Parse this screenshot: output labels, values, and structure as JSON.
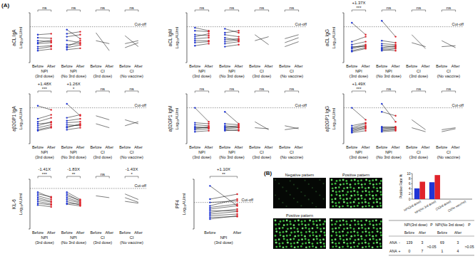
{
  "panel_labels": [
    "(A)",
    "(B)"
  ],
  "chart_data": [
    {
      "type": "line",
      "title": "aCL IgA",
      "y_label": "Log₁₀AU/ml",
      "ylim": [
        -0.5,
        2
      ],
      "tick_labels": false,
      "cutoff": {
        "value": 1.3,
        "label": "Cut-off"
      },
      "categories": [
        "Before",
        "After"
      ],
      "series": [
        {
          "name": "NPI (3rd dose)",
          "marker": "circle",
          "colors": [
            "#1f35d6",
            "#e0232b"
          ],
          "significance": "ns",
          "lines": [
            [
              0.45,
              0.5
            ],
            [
              0.3,
              0.35
            ],
            [
              0.6,
              0.55
            ],
            [
              0.2,
              0.3
            ],
            [
              0.75,
              0.72
            ],
            [
              0.5,
              0.62
            ],
            [
              0.9,
              0.95
            ],
            [
              0.1,
              0.18
            ]
          ]
        },
        {
          "name": "NPI (No 3rd dose)",
          "marker": "circle",
          "colors": [
            "#1f35d6",
            "#e0232b"
          ],
          "significance": "ns",
          "lines": [
            [
              0.4,
              0.45
            ],
            [
              0.62,
              0.5
            ],
            [
              0.25,
              0.38
            ],
            [
              1.15,
              0.7
            ],
            [
              0.8,
              0.9
            ],
            [
              0.3,
              0.6
            ],
            [
              0.95,
              1.05
            ],
            [
              0.15,
              0.22
            ]
          ]
        },
        {
          "name": "CI (3rd dose)",
          "significance": "ns",
          "lines": [
            [
              1.0,
              0.1
            ],
            [
              0.6,
              0.45
            ]
          ]
        },
        {
          "name": "CI (No vaccine)",
          "significance": "ns",
          "lines": [
            [
              0.85,
              0.3
            ],
            [
              0.45,
              0.6
            ],
            [
              0.25,
              0.5
            ]
          ]
        }
      ]
    },
    {
      "type": "line",
      "title": "aCL IgM",
      "y_label": "Log₁₀AU/ml",
      "ylim": [
        -0.5,
        2
      ],
      "tick_labels": false,
      "cutoff": {
        "value": 1.3,
        "label": "Cut-off"
      },
      "categories": [
        "Before",
        "After"
      ],
      "series": [
        {
          "name": "NPI (3rd dose)",
          "marker": "circle",
          "colors": [
            "#1f35d6",
            "#e0232b"
          ],
          "significance": "ns",
          "lines": [
            [
              0.7,
              0.75
            ],
            [
              0.5,
              0.55
            ],
            [
              0.9,
              0.85
            ],
            [
              1.1,
              1.05
            ],
            [
              0.35,
              0.45
            ],
            [
              0.8,
              0.95
            ],
            [
              0.6,
              0.6
            ],
            [
              1.25,
              1.1
            ]
          ]
        },
        {
          "name": "NPI (No 3rd dose)",
          "marker": "circle",
          "colors": [
            "#1f35d6",
            "#e0232b"
          ],
          "significance": "ns",
          "lines": [
            [
              0.65,
              0.7
            ],
            [
              0.9,
              0.8
            ],
            [
              0.45,
              0.55
            ],
            [
              1.0,
              1.1
            ],
            [
              0.3,
              0.4
            ],
            [
              0.75,
              0.6
            ],
            [
              1.2,
              1.0
            ],
            [
              0.55,
              0.65
            ]
          ]
        },
        {
          "name": "CI (3rd dose)",
          "significance": "ns",
          "lines": [
            [
              0.9,
              0.4
            ],
            [
              0.6,
              0.8
            ]
          ]
        },
        {
          "name": "CI (No vaccine)",
          "significance": "ns",
          "lines": [
            [
              0.5,
              0.75
            ],
            [
              0.3,
              0.55
            ],
            [
              0.7,
              0.9
            ]
          ]
        }
      ]
    },
    {
      "type": "line",
      "title": "aCL IgG",
      "y_label": "Log₁₀AU/ml",
      "ylim": [
        -0.5,
        2
      ],
      "tick_labels": false,
      "cutoff": {
        "value": 1.3,
        "label": "Cut-off"
      },
      "categories": [
        "Before",
        "After"
      ],
      "series": [
        {
          "name": "NPI (3rd dose)",
          "marker": "circle",
          "colors": [
            "#1f35d6",
            "#e0232b"
          ],
          "significance": "***",
          "fold_change": "+1.37X",
          "lines": [
            [
              0.2,
              0.35
            ],
            [
              0.1,
              0.25
            ],
            [
              0.4,
              0.55
            ],
            [
              0.3,
              0.3
            ],
            [
              0.55,
              0.8
            ],
            [
              0.05,
              0.2
            ],
            [
              1.5,
              0.9
            ],
            [
              0.25,
              0.4
            ]
          ]
        },
        {
          "name": "NPI (No 3rd dose)",
          "marker": "circle",
          "colors": [
            "#1f35d6",
            "#e0232b"
          ],
          "significance": "ns",
          "lines": [
            [
              0.2,
              0.25
            ],
            [
              0.35,
              0.3
            ],
            [
              1.6,
              0.8
            ],
            [
              0.1,
              0.2
            ],
            [
              0.45,
              0.4
            ],
            [
              0.25,
              0.35
            ],
            [
              0.6,
              0.5
            ],
            [
              0.15,
              0.1
            ]
          ]
        },
        {
          "name": "CI (3rd dose)",
          "significance": "ns",
          "lines": [
            [
              0.9,
              0.2
            ],
            [
              0.5,
              0.3
            ]
          ]
        },
        {
          "name": "CI (No vaccine)",
          "significance": "ns",
          "lines": [
            [
              0.6,
              0.25
            ],
            [
              0.3,
              0.35
            ]
          ]
        }
      ]
    },
    {
      "type": "line",
      "title": "aβ2GP1 IgA",
      "y_label": "Log₁₀AU/ml",
      "ylim": [
        -0.5,
        2
      ],
      "tick_labels": false,
      "cutoff": {
        "value": 1.3,
        "label": "Cut-off"
      },
      "categories": [
        "Before",
        "After"
      ],
      "series": [
        {
          "name": "NPI (3rd dose)",
          "marker": "circle",
          "colors": [
            "#1f35d6",
            "#e0232b"
          ],
          "significance": "***",
          "fold_change": "+1.48X",
          "lines": [
            [
              0.4,
              0.6
            ],
            [
              0.3,
              0.45
            ],
            [
              0.6,
              0.8
            ],
            [
              0.2,
              0.35
            ],
            [
              0.75,
              0.95
            ],
            [
              0.5,
              0.55
            ],
            [
              1.4,
              1.2
            ],
            [
              0.15,
              0.3
            ]
          ]
        },
        {
          "name": "NPI (No 3rd dose)",
          "marker": "circle",
          "colors": [
            "#1f35d6",
            "#e0232b"
          ],
          "significance": "*",
          "fold_change": "+1.26X",
          "lines": [
            [
              0.35,
              0.45
            ],
            [
              0.55,
              0.6
            ],
            [
              0.2,
              0.3
            ],
            [
              0.8,
              0.95
            ],
            [
              0.45,
              0.4
            ],
            [
              1.5,
              0.9
            ],
            [
              0.3,
              0.5
            ],
            [
              0.65,
              0.75
            ]
          ]
        },
        {
          "name": "CI (3rd dose)",
          "significance": "ns",
          "lines": [
            [
              0.9,
              0.7
            ],
            [
              0.5,
              0.3
            ]
          ]
        },
        {
          "name": "CI (No vaccine)",
          "significance": "ns",
          "lines": [
            [
              0.7,
              0.5
            ],
            [
              0.4,
              0.6
            ]
          ]
        }
      ]
    },
    {
      "type": "line",
      "title": "aβ2GP1 IgM",
      "y_label": "Log₁₀AU/ml",
      "ylim": [
        -0.5,
        2
      ],
      "tick_labels": false,
      "cutoff": {
        "value": 1.3,
        "label": "Cut-off"
      },
      "categories": [
        "Before",
        "After"
      ],
      "series": [
        {
          "name": "NPI (3rd dose)",
          "marker": "circle",
          "colors": [
            "#1f35d6",
            "#e0232b"
          ],
          "significance": "ns",
          "lines": [
            [
              0.3,
              0.3
            ],
            [
              0.2,
              0.25
            ],
            [
              0.45,
              0.4
            ],
            [
              0.1,
              0.15
            ],
            [
              1.3,
              0.6
            ],
            [
              0.35,
              0.3
            ],
            [
              0.25,
              0.35
            ],
            [
              0.55,
              0.5
            ]
          ]
        },
        {
          "name": "NPI (No 3rd dose)",
          "marker": "circle",
          "colors": [
            "#1f35d6",
            "#e0232b"
          ],
          "significance": "ns",
          "lines": [
            [
              0.25,
              0.3
            ],
            [
              0.4,
              0.35
            ],
            [
              0.15,
              0.2
            ],
            [
              1.1,
              0.5
            ],
            [
              0.3,
              0.4
            ],
            [
              0.5,
              0.45
            ],
            [
              0.2,
              0.15
            ],
            [
              0.35,
              0.3
            ]
          ]
        },
        {
          "name": "CI (3rd dose)",
          "significance": "ns",
          "lines": [
            [
              0.6,
              0.2
            ],
            [
              0.3,
              0.25
            ]
          ]
        },
        {
          "name": "CI (No vaccine)",
          "significance": "ns",
          "lines": [
            [
              0.2,
              0.3
            ],
            [
              0.4,
              0.25
            ]
          ]
        }
      ]
    },
    {
      "type": "line",
      "title": "aβ2GP1 IgG",
      "y_label": "Log₁₀AU/ml",
      "ylim": [
        -0.5,
        2
      ],
      "tick_labels": false,
      "cutoff": {
        "value": 1.3,
        "label": "Cut-off"
      },
      "categories": [
        "Before",
        "After"
      ],
      "series": [
        {
          "name": "NPI (3rd dose)",
          "marker": "circle",
          "colors": [
            "#1f35d6",
            "#e0232b"
          ],
          "significance": "***",
          "fold_change": "+1.49X",
          "lines": [
            [
              0.1,
              0.25
            ],
            [
              0.2,
              0.35
            ],
            [
              0.05,
              0.15
            ],
            [
              0.3,
              0.5
            ],
            [
              0.15,
              0.3
            ],
            [
              1.3,
              0.7
            ],
            [
              0.25,
              0.4
            ],
            [
              0.4,
              0.55
            ]
          ]
        },
        {
          "name": "NPI (No 3rd dose)",
          "marker": "circle",
          "colors": [
            "#1f35d6",
            "#e0232b"
          ],
          "significance": "ns",
          "lines": [
            [
              0.15,
              0.2
            ],
            [
              0.25,
              0.3
            ],
            [
              1.5,
              0.6
            ],
            [
              0.1,
              0.15
            ],
            [
              0.35,
              0.3
            ],
            [
              0.2,
              0.25
            ],
            [
              1.1,
              0.9
            ],
            [
              0.3,
              0.35
            ]
          ]
        },
        {
          "name": "CI (3rd dose)",
          "significance": "ns",
          "lines": [
            [
              0.7,
              0.2
            ],
            [
              0.3,
              0.1
            ]
          ]
        },
        {
          "name": "CI (No vaccine)",
          "significance": "ns",
          "lines": [
            [
              0.2,
              0.3
            ],
            [
              0.1,
              0.25
            ]
          ]
        }
      ]
    },
    {
      "type": "line",
      "title": "KL-6",
      "y_label": "Log₁₀AU/ml",
      "ylim": [
        0.5,
        3.2
      ],
      "tick_labels": false,
      "cutoff": {
        "value": 2.7,
        "label": "Cut-off"
      },
      "categories": [
        "Before",
        "After"
      ],
      "series": [
        {
          "name": "NPI (3rd dose)",
          "marker": "circle",
          "colors": [
            "#1f35d6",
            "#e0232b"
          ],
          "significance": "***",
          "fold_change": "-1.41X",
          "lines": [
            [
              2.3,
              2.1
            ],
            [
              2.1,
              1.95
            ],
            [
              2.5,
              2.2
            ],
            [
              1.9,
              1.8
            ],
            [
              2.2,
              2.0
            ],
            [
              2.0,
              1.85
            ],
            [
              2.4,
              2.25
            ],
            [
              1.8,
              1.7
            ]
          ]
        },
        {
          "name": "NPI (No 3rd dose)",
          "marker": "circle",
          "colors": [
            "#1f35d6",
            "#e0232b"
          ],
          "significance": "**",
          "fold_change": "-1.83X",
          "lines": [
            [
              2.2,
              1.95
            ],
            [
              2.4,
              2.0
            ],
            [
              2.0,
              1.8
            ],
            [
              1.9,
              1.85
            ],
            [
              2.3,
              2.05
            ],
            [
              2.1,
              1.9
            ],
            [
              2.5,
              2.1
            ],
            [
              1.85,
              1.75
            ]
          ]
        },
        {
          "name": "CI (3rd dose)",
          "significance": "ns",
          "lines": [
            [
              2.3,
              2.2
            ]
          ]
        },
        {
          "name": "CI (No vaccine)",
          "significance": "*",
          "fold_change": "-1.43X",
          "lines": [
            [
              2.4,
              2.1
            ],
            [
              2.2,
              1.95
            ],
            [
              2.0,
              1.9
            ]
          ]
        }
      ]
    },
    {
      "type": "line",
      "title": "PF4",
      "y_label": "Log₁₀AU/ml",
      "ylim": [
        0,
        3
      ],
      "tick_labels": false,
      "cutoff": {
        "value": 1.6,
        "label": "Cut-off"
      },
      "categories": [
        "Before",
        "After"
      ],
      "series": [
        {
          "name": "NPI (3rd dose)",
          "marker": "circle",
          "colors": [
            "#1f35d6",
            "#e0232b"
          ],
          "significance": "**",
          "fold_change": "+1.10X",
          "lines": [
            [
              1.0,
              1.2
            ],
            [
              0.8,
              0.9
            ],
            [
              1.3,
              1.5
            ],
            [
              1.6,
              1.7
            ],
            [
              0.6,
              0.8
            ],
            [
              1.1,
              1.1
            ],
            [
              2.6,
              1.4
            ],
            [
              1.4,
              1.8
            ],
            [
              0.9,
              1.05
            ],
            [
              1.8,
              2.1
            ],
            [
              0.7,
              0.75
            ],
            [
              1.2,
              1.4
            ]
          ]
        }
      ]
    },
    {
      "type": "bar",
      "y_label": "Positive Rate %",
      "ylim": [
        0,
        10
      ],
      "yticks": [
        0,
        2,
        4,
        6,
        8,
        10
      ],
      "categories": [
        "NPI(3rd dose)",
        "NPI(No 3rd dose)",
        "CI(3rd dose)",
        "CI(No vaccine)"
      ],
      "series": [
        {
          "color": "#1f35d6",
          "values": [
            4.2,
            6.6,
            0,
            0
          ]
        },
        {
          "color": "#e0232b",
          "values": [
            6.8,
            9.4,
            0,
            0
          ]
        }
      ]
    }
  ],
  "ana_images": {
    "labels": [
      "Negative pattern",
      "Positive pattern",
      "Positive pattern"
    ]
  },
  "table": {
    "groups": [
      "NPI(3rd dose)",
      "NPI(No 3rd dose)"
    ],
    "p_header": "P",
    "subheaders": [
      "Before",
      "After"
    ],
    "rows": [
      {
        "label": "ANA",
        "sign": "-",
        "cells": [
          [
            139,
            3
          ],
          [
            69,
            3
          ]
        ]
      },
      {
        "label": "ANA",
        "sign": "+",
        "cells": [
          [
            0,
            7
          ],
          [
            1,
            4
          ]
        ]
      }
    ],
    "p_values": [
      ">0.05",
      ">0.05"
    ]
  }
}
